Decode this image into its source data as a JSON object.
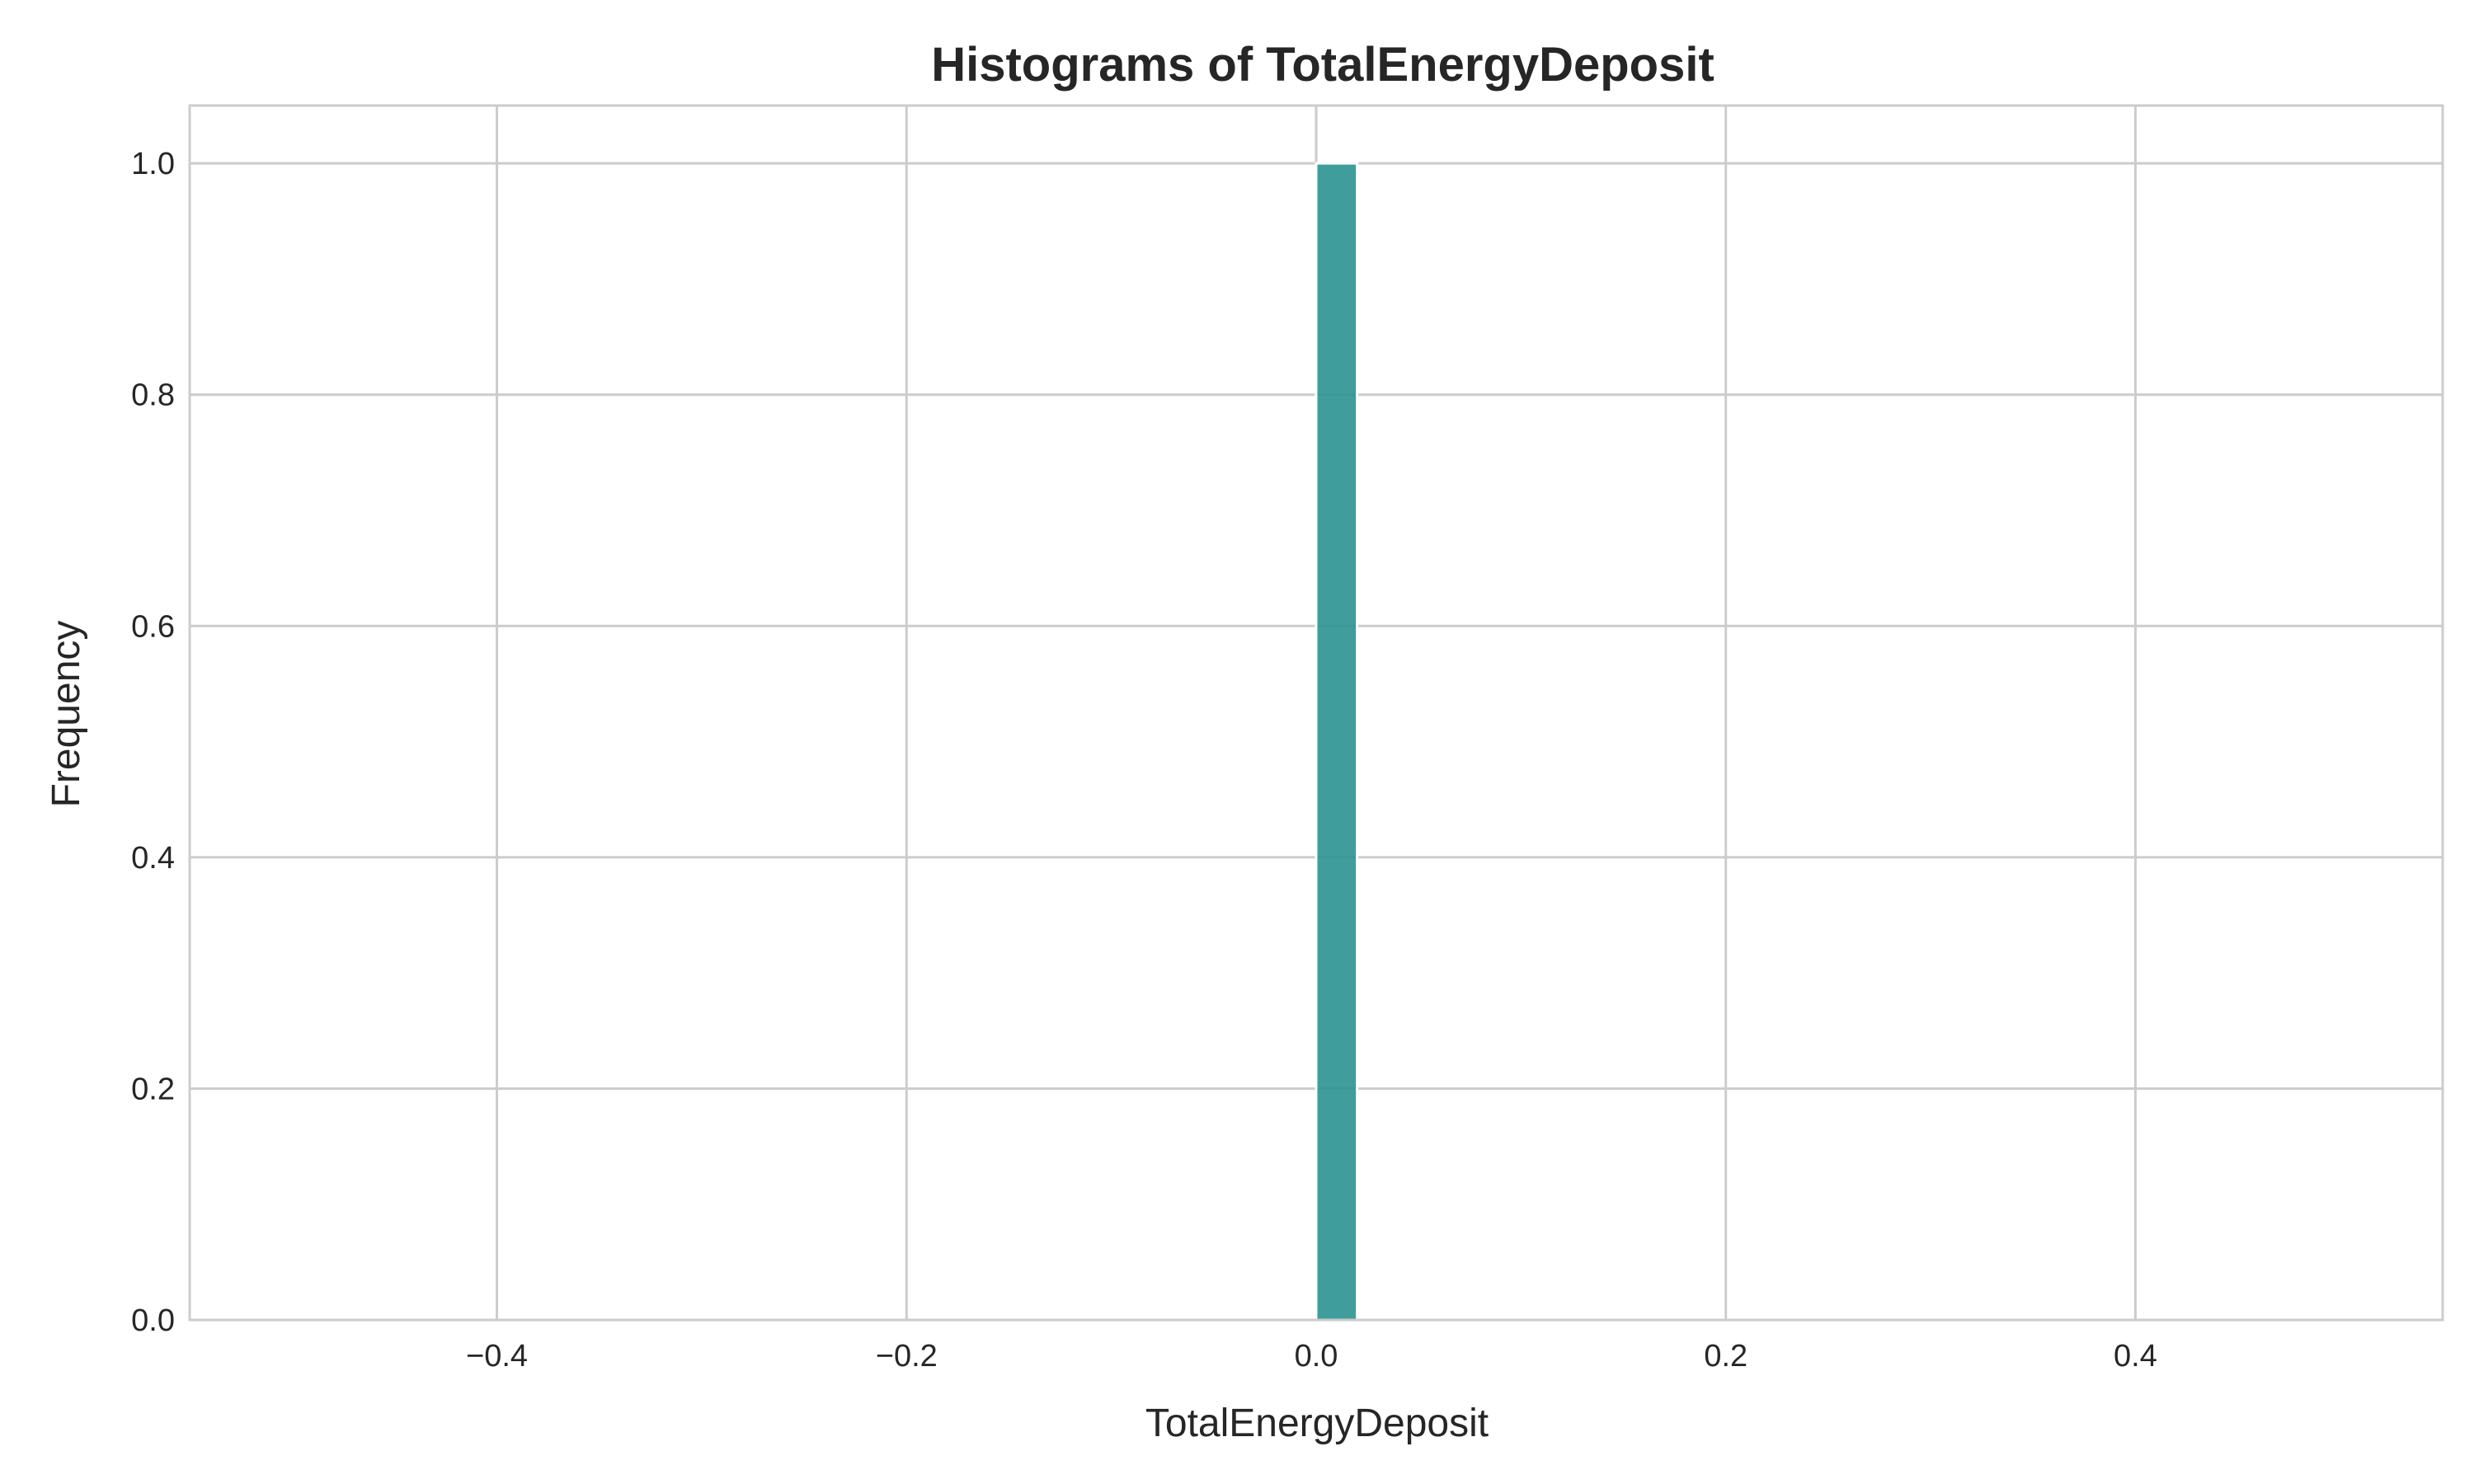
{
  "chart_data": {
    "type": "bar",
    "title": "Histograms of TotalEnergyDeposit",
    "xlabel": "TotalEnergyDeposit",
    "ylabel": "Frequency",
    "xlim": [
      -0.55,
      0.55
    ],
    "ylim": [
      0,
      1.05
    ],
    "x_ticks": [
      -0.4,
      -0.2,
      0.0,
      0.2,
      0.4
    ],
    "x_tick_labels": [
      "−0.4",
      "−0.2",
      "0.0",
      "0.2",
      "0.4"
    ],
    "y_ticks": [
      0.0,
      0.2,
      0.4,
      0.6,
      0.8,
      1.0
    ],
    "y_tick_labels": [
      "0.0",
      "0.2",
      "0.4",
      "0.6",
      "0.8",
      "1.0"
    ],
    "grid": true,
    "legend": "none",
    "bars": [
      {
        "x_start": 0.0,
        "x_end": 0.02,
        "value": 1.0
      }
    ],
    "colors": {
      "bar": "#2a9490",
      "grid": "#cccccc",
      "frame": "#cccccc"
    }
  }
}
